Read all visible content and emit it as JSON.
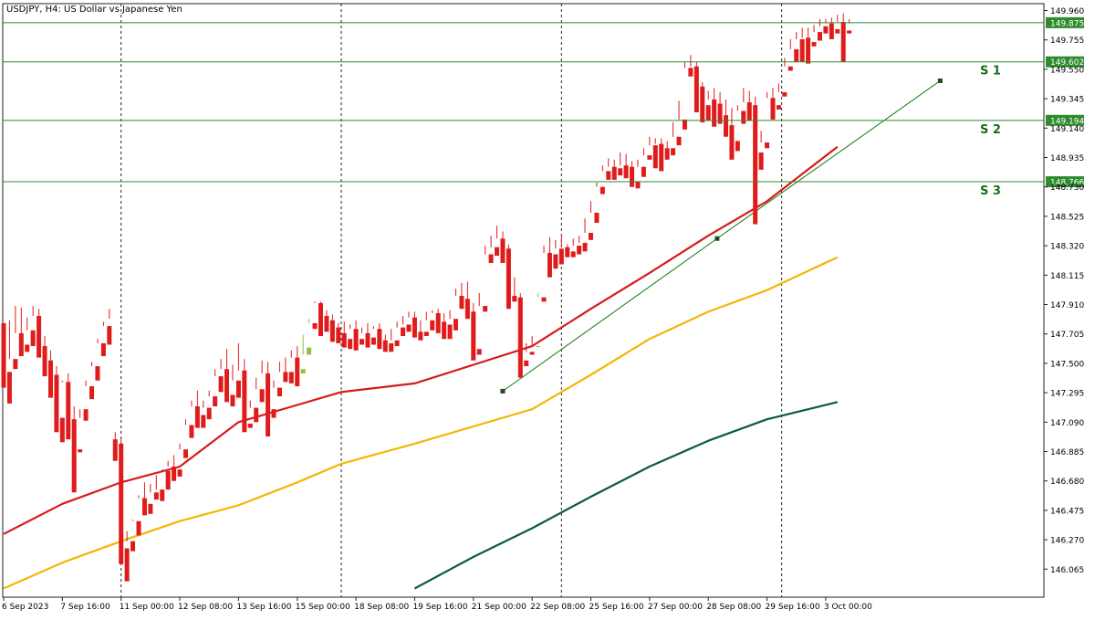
{
  "chart_data": {
    "type": "candlestick",
    "title": "USDJPY, H4:  US Dollar vs Japanese Yen",
    "symbol": "USDJPY",
    "timeframe": "H4",
    "description": "US Dollar vs Japanese Yen",
    "y_ticks": [
      "149.960",
      "149.755",
      "149.550",
      "149.345",
      "149.140",
      "148.935",
      "148.730",
      "148.525",
      "148.320",
      "148.115",
      "147.910",
      "147.705",
      "147.500",
      "147.295",
      "147.090",
      "146.885",
      "146.680",
      "146.475",
      "146.270",
      "146.065"
    ],
    "ylim": [
      145.93,
      149.97
    ],
    "x_ticks": [
      {
        "label": "6 Sep 2023",
        "bar": 0
      },
      {
        "label": "7 Sep 16:00",
        "bar": 10
      },
      {
        "label": "11 Sep 00:00",
        "bar": 20
      },
      {
        "label": "12 Sep 08:00",
        "bar": 30
      },
      {
        "label": "13 Sep 16:00",
        "bar": 40
      },
      {
        "label": "15 Sep 00:00",
        "bar": 50
      },
      {
        "label": "18 Sep 08:00",
        "bar": 60
      },
      {
        "label": "19 Sep 16:00",
        "bar": 70
      },
      {
        "label": "21 Sep 00:00",
        "bar": 80
      },
      {
        "label": "22 Sep 08:00",
        "bar": 90
      },
      {
        "label": "25 Sep 16:00",
        "bar": 100
      },
      {
        "label": "27 Sep 00:00",
        "bar": 110
      },
      {
        "label": "28 Sep 08:00",
        "bar": 120
      },
      {
        "label": "29 Sep 16:00",
        "bar": 130
      },
      {
        "label": "3 Oct 00:00",
        "bar": 140
      }
    ],
    "period_separators_bars": [
      20,
      57.5,
      95,
      132.5,
      178
    ],
    "bull_color": "#8bc34a",
    "bear_color": "#e01b1b",
    "candles": [
      [
        147.78,
        147.78,
        147.44,
        147.33
      ],
      [
        147.44,
        147.8,
        147.53,
        147.22
      ],
      [
        147.53,
        147.9,
        147.71,
        147.46
      ],
      [
        147.71,
        147.89,
        147.63,
        147.55
      ],
      [
        147.63,
        147.82,
        147.73,
        147.58
      ],
      [
        147.73,
        147.9,
        147.83,
        147.62
      ],
      [
        147.83,
        147.88,
        147.62,
        147.54
      ],
      [
        147.62,
        147.69,
        147.52,
        147.41
      ],
      [
        147.52,
        147.59,
        147.42,
        147.26
      ],
      [
        147.42,
        147.48,
        147.12,
        147.02
      ],
      [
        147.12,
        147.38,
        147.37,
        146.95
      ],
      [
        147.37,
        147.43,
        147.11,
        146.97
      ],
      [
        147.11,
        147.2,
        146.9,
        146.6
      ],
      [
        146.9,
        147.12,
        147.18,
        146.88
      ],
      [
        147.18,
        147.38,
        147.34,
        147.1
      ],
      [
        147.34,
        147.51,
        147.48,
        147.25
      ],
      [
        147.48,
        147.67,
        147.64,
        147.38
      ],
      [
        147.64,
        147.79,
        147.76,
        147.55
      ],
      [
        147.76,
        147.88,
        147.81,
        147.63
      ],
      [
        146.97,
        147.02,
        146.94,
        146.82
      ],
      [
        146.94,
        146.99,
        146.21,
        146.1
      ],
      [
        146.21,
        146.33,
        146.26,
        145.98
      ],
      [
        146.26,
        146.41,
        146.4,
        146.19
      ],
      [
        146.4,
        146.58,
        146.56,
        146.3
      ],
      [
        146.56,
        146.67,
        146.52,
        146.44
      ],
      [
        146.52,
        146.66,
        146.6,
        146.45
      ],
      [
        146.6,
        146.72,
        146.62,
        146.55
      ],
      [
        146.62,
        146.76,
        146.75,
        146.54
      ],
      [
        146.75,
        146.82,
        146.78,
        146.62
      ],
      [
        146.78,
        146.86,
        146.76,
        146.68
      ],
      [
        146.76,
        146.94,
        146.9,
        146.71
      ],
      [
        146.9,
        147.11,
        147.07,
        146.84
      ],
      [
        147.07,
        147.24,
        147.2,
        146.98
      ],
      [
        147.2,
        147.31,
        147.14,
        147.05
      ],
      [
        147.14,
        147.24,
        147.19,
        147.05
      ],
      [
        147.19,
        147.31,
        147.27,
        147.11
      ],
      [
        147.27,
        147.46,
        147.41,
        147.2
      ],
      [
        147.41,
        147.53,
        147.46,
        147.3
      ],
      [
        147.46,
        147.6,
        147.28,
        147.23
      ],
      [
        147.28,
        147.49,
        147.38,
        147.2
      ],
      [
        147.38,
        147.64,
        147.45,
        147.26
      ],
      [
        147.45,
        147.53,
        147.08,
        147.02
      ],
      [
        147.08,
        147.24,
        147.19,
        147.05
      ],
      [
        147.19,
        147.4,
        147.32,
        147.09
      ],
      [
        147.32,
        147.52,
        147.43,
        147.23
      ],
      [
        147.43,
        147.51,
        147.18,
        146.99
      ],
      [
        147.18,
        147.38,
        147.33,
        147.12
      ],
      [
        147.33,
        147.51,
        147.44,
        147.27
      ],
      [
        147.44,
        147.54,
        147.44,
        147.37
      ],
      [
        147.44,
        147.59,
        147.54,
        147.36
      ],
      [
        147.54,
        147.62,
        147.43,
        147.34
      ],
      [
        147.43,
        147.7,
        147.56,
        147.46
      ],
      [
        147.56,
        147.81,
        147.78,
        147.61
      ],
      [
        147.78,
        147.93,
        147.92,
        147.74
      ],
      [
        147.92,
        147.93,
        147.83,
        147.69
      ],
      [
        147.83,
        147.87,
        147.8,
        147.72
      ],
      [
        147.8,
        147.84,
        147.75,
        147.65
      ],
      [
        147.75,
        147.78,
        147.71,
        147.64
      ],
      [
        147.71,
        147.79,
        147.67,
        147.61
      ],
      [
        147.67,
        147.77,
        147.74,
        147.6
      ],
      [
        147.74,
        147.8,
        147.67,
        147.59
      ],
      [
        147.67,
        147.75,
        147.71,
        147.63
      ],
      [
        147.71,
        147.78,
        147.68,
        147.61
      ],
      [
        147.68,
        147.76,
        147.74,
        147.63
      ],
      [
        147.74,
        147.78,
        147.66,
        147.6
      ],
      [
        147.66,
        147.7,
        147.64,
        147.58
      ],
      [
        147.64,
        147.74,
        147.66,
        147.58
      ],
      [
        147.66,
        147.79,
        147.75,
        147.62
      ],
      [
        147.75,
        147.83,
        147.77,
        147.69
      ],
      [
        147.77,
        147.86,
        147.82,
        147.72
      ],
      [
        147.82,
        147.86,
        147.72,
        147.68
      ],
      [
        147.72,
        147.8,
        147.72,
        147.66
      ],
      [
        147.72,
        147.86,
        147.8,
        147.69
      ],
      [
        147.8,
        147.87,
        147.85,
        147.73
      ],
      [
        147.85,
        147.88,
        147.79,
        147.71
      ],
      [
        147.79,
        147.85,
        147.77,
        147.67
      ],
      [
        147.77,
        147.87,
        147.81,
        147.67
      ],
      [
        147.81,
        148.02,
        147.97,
        147.73
      ],
      [
        147.97,
        148.06,
        147.95,
        147.88
      ],
      [
        147.95,
        148.07,
        147.86,
        147.81
      ],
      [
        147.86,
        147.92,
        147.6,
        147.52
      ],
      [
        147.6,
        147.99,
        147.9,
        147.56
      ],
      [
        147.9,
        148.32,
        148.26,
        147.86
      ],
      [
        148.26,
        148.39,
        148.31,
        148.2
      ],
      [
        148.31,
        148.46,
        148.37,
        148.25
      ],
      [
        148.37,
        148.42,
        148.3,
        148.2
      ],
      [
        148.3,
        148.33,
        147.97,
        147.88
      ],
      [
        147.97,
        148.1,
        147.96,
        147.93
      ],
      [
        147.96,
        147.99,
        147.52,
        147.4
      ],
      [
        147.52,
        147.64,
        147.58,
        147.48
      ],
      [
        147.58,
        147.69,
        147.62,
        147.56
      ],
      [
        147.62,
        147.99,
        147.96,
        147.62
      ],
      [
        147.96,
        148.32,
        148.27,
        147.93
      ],
      [
        148.27,
        148.38,
        148.26,
        148.1
      ],
      [
        148.26,
        148.36,
        148.3,
        148.16
      ],
      [
        148.3,
        148.39,
        148.31,
        148.19
      ],
      [
        148.31,
        148.33,
        148.28,
        148.24
      ],
      [
        148.28,
        148.37,
        148.32,
        148.24
      ],
      [
        148.32,
        148.39,
        148.34,
        148.26
      ],
      [
        148.34,
        148.51,
        148.41,
        148.28
      ],
      [
        148.41,
        148.63,
        148.55,
        148.36
      ],
      [
        148.55,
        148.76,
        148.73,
        148.48
      ],
      [
        148.73,
        148.88,
        148.84,
        148.68
      ],
      [
        148.84,
        148.93,
        148.87,
        148.78
      ],
      [
        148.87,
        148.92,
        148.86,
        148.78
      ],
      [
        148.86,
        148.97,
        148.88,
        148.81
      ],
      [
        148.88,
        148.96,
        148.87,
        148.79
      ],
      [
        148.87,
        148.91,
        148.77,
        148.73
      ],
      [
        148.77,
        148.92,
        148.87,
        148.72
      ],
      [
        148.87,
        149.0,
        148.95,
        148.8
      ],
      [
        148.95,
        149.08,
        149.02,
        148.92
      ],
      [
        149.02,
        149.07,
        149.03,
        148.86
      ],
      [
        149.03,
        149.07,
        149.0,
        148.84
      ],
      [
        149.0,
        149.05,
        149.0,
        148.92
      ],
      [
        149.0,
        149.18,
        149.08,
        148.95
      ],
      [
        149.08,
        149.33,
        149.2,
        149.02
      ],
      [
        149.2,
        149.6,
        149.56,
        149.13
      ],
      [
        149.56,
        149.65,
        149.57,
        149.5
      ],
      [
        149.57,
        149.6,
        149.43,
        149.25
      ],
      [
        149.43,
        149.46,
        149.3,
        149.18
      ],
      [
        149.3,
        149.4,
        149.34,
        149.19
      ],
      [
        149.34,
        149.42,
        149.31,
        149.15
      ],
      [
        149.31,
        149.39,
        149.23,
        149.17
      ],
      [
        149.23,
        149.34,
        149.16,
        149.08
      ],
      [
        149.16,
        149.28,
        149.05,
        148.92
      ],
      [
        149.05,
        149.3,
        149.26,
        148.98
      ],
      [
        149.26,
        149.42,
        149.32,
        149.17
      ],
      [
        149.32,
        149.4,
        149.3,
        149.19
      ],
      [
        149.3,
        149.36,
        148.97,
        148.47
      ],
      [
        148.97,
        149.12,
        149.04,
        148.85
      ],
      [
        149.04,
        149.39,
        149.35,
        149.0
      ],
      [
        149.35,
        149.42,
        149.3,
        149.2
      ],
      [
        149.3,
        149.45,
        149.39,
        149.27
      ],
      [
        149.39,
        149.63,
        149.57,
        149.36
      ],
      [
        149.57,
        149.76,
        149.69,
        149.54
      ],
      [
        149.69,
        149.81,
        149.76,
        149.6
      ],
      [
        149.76,
        149.84,
        149.77,
        149.6
      ],
      [
        149.77,
        149.84,
        149.74,
        149.59
      ],
      [
        149.74,
        149.86,
        149.81,
        149.71
      ],
      [
        149.81,
        149.9,
        149.85,
        149.75
      ],
      [
        149.85,
        149.9,
        149.87,
        149.8
      ],
      [
        149.87,
        149.91,
        149.83,
        149.76
      ],
      [
        149.83,
        149.93,
        149.88,
        149.8
      ],
      [
        149.88,
        149.94,
        149.82,
        149.6
      ],
      [
        149.82,
        149.9,
        149.87,
        149.8
      ]
    ],
    "price_lines": [
      {
        "value": 149.875,
        "label": "149.875"
      },
      {
        "value": 149.602,
        "label": "149.602"
      },
      {
        "value": 149.194,
        "label": "149.194"
      },
      {
        "value": 148.766,
        "label": "148.766"
      }
    ],
    "support_labels": [
      {
        "text": "S 1",
        "level": 149.602
      },
      {
        "text": "S 2",
        "level": 149.194
      },
      {
        "text": "S 3",
        "level": 148.766
      }
    ],
    "trendline": {
      "color": "#0f7a0f",
      "points": [
        {
          "bar": 85,
          "y": 147.306
        },
        {
          "bar": 121.5,
          "y": 148.37
        },
        {
          "bar": 159.5,
          "y": 149.47
        }
      ]
    },
    "moving_averages": [
      {
        "color": "#d61a1a",
        "points": [
          [
            0,
            146.31
          ],
          [
            10,
            146.52
          ],
          [
            20,
            146.67
          ],
          [
            30,
            146.78
          ],
          [
            40,
            147.09
          ],
          [
            50,
            147.21
          ],
          [
            57.5,
            147.3
          ],
          [
            70,
            147.36
          ],
          [
            80,
            147.49
          ],
          [
            90,
            147.62
          ],
          [
            100,
            147.88
          ],
          [
            110,
            148.13
          ],
          [
            120,
            148.39
          ],
          [
            130,
            148.63
          ],
          [
            142,
            149.01
          ]
        ]
      },
      {
        "color": "#f2b705",
        "points": [
          [
            0,
            145.93
          ],
          [
            10,
            146.11
          ],
          [
            20,
            146.26
          ],
          [
            30,
            146.4
          ],
          [
            40,
            146.51
          ],
          [
            50,
            146.67
          ],
          [
            57.5,
            146.8
          ],
          [
            70,
            146.94
          ],
          [
            80,
            147.06
          ],
          [
            90,
            147.18
          ],
          [
            100,
            147.42
          ],
          [
            110,
            147.67
          ],
          [
            120,
            147.86
          ],
          [
            130,
            148.01
          ],
          [
            142,
            148.24
          ]
        ]
      },
      {
        "color": "#0c5a47",
        "points": [
          [
            70,
            145.93
          ],
          [
            80,
            146.15
          ],
          [
            90,
            146.35
          ],
          [
            100,
            146.57
          ],
          [
            110,
            146.78
          ],
          [
            120,
            146.96
          ],
          [
            130,
            147.11
          ],
          [
            142,
            147.23
          ]
        ]
      }
    ]
  }
}
